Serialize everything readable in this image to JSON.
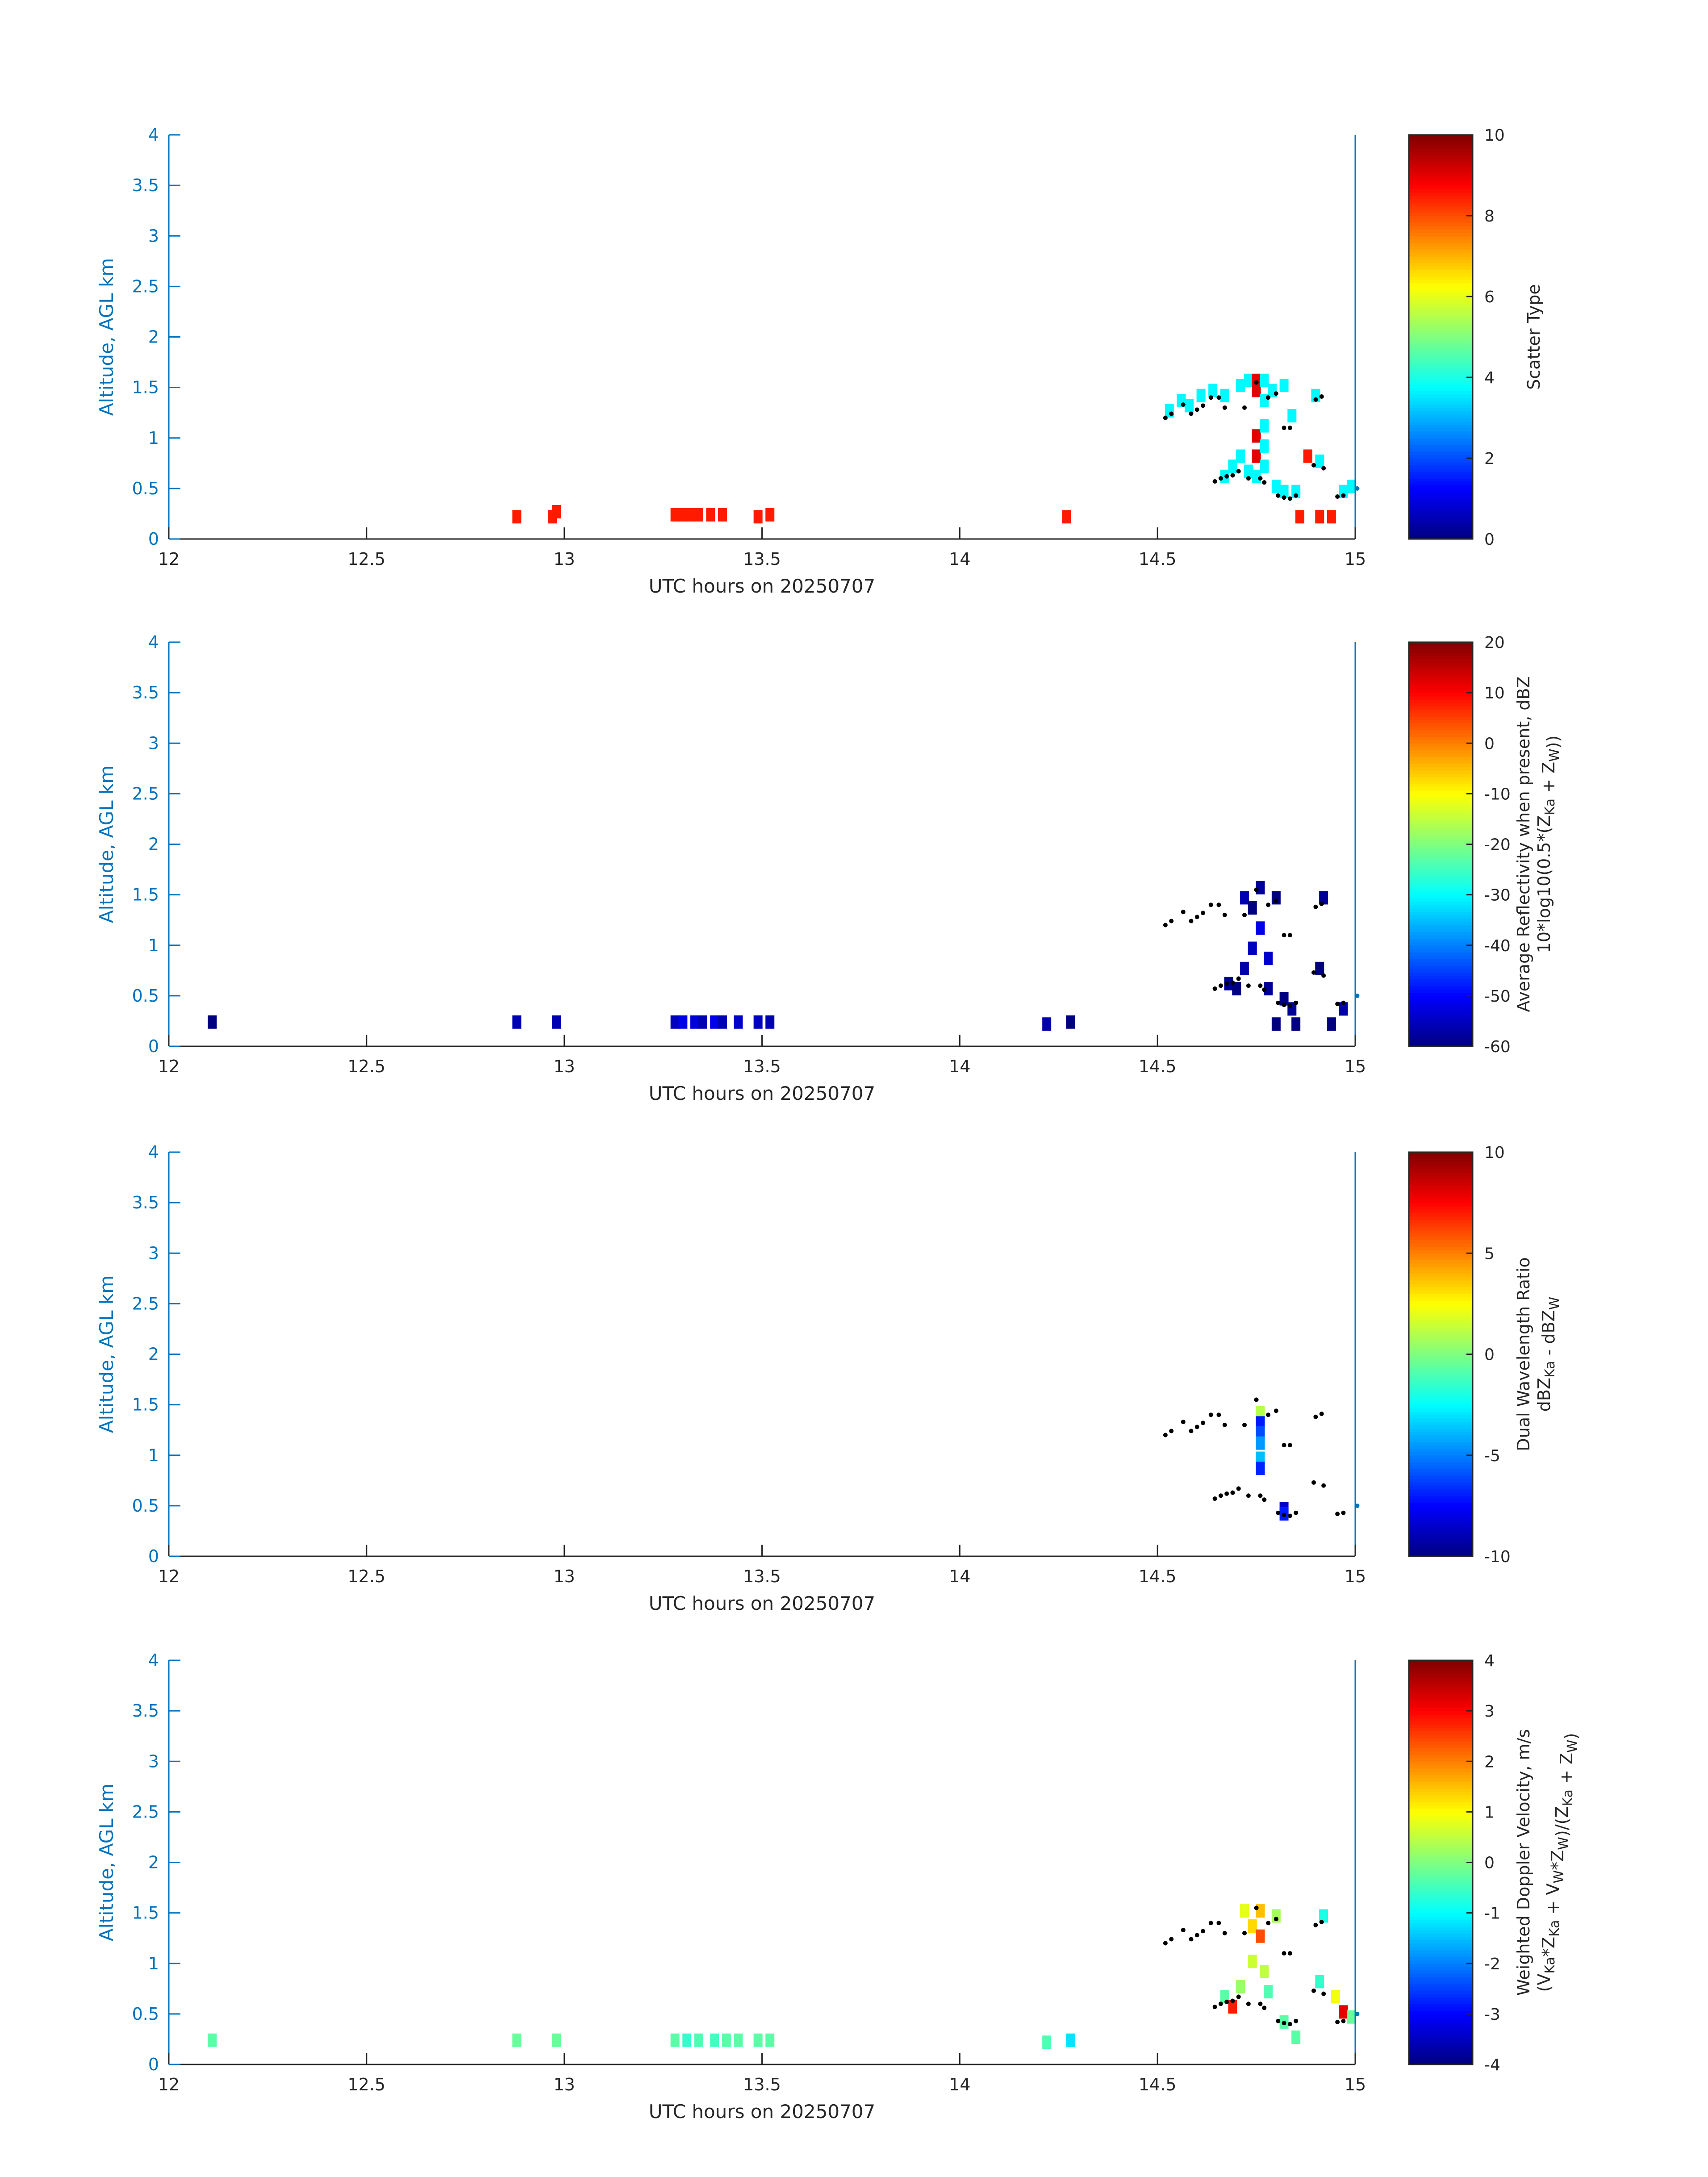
{
  "figure": {
    "xlabel": "UTC hours on 20250707",
    "ylabel": "Altitude, AGL km",
    "xlim": [
      12,
      15
    ],
    "ylim": [
      0,
      4
    ],
    "xticks": [
      12,
      12.5,
      13,
      13.5,
      14,
      14.5,
      15
    ],
    "yticks": [
      0,
      0.5,
      1,
      1.5,
      2,
      2.5,
      3,
      3.5,
      4
    ],
    "colormap": "jet",
    "axis_color": "#0072BD",
    "text_color": "#262626"
  },
  "chart_data": [
    {
      "type": "heatmap",
      "colorbar_label": [
        "Scatter Type"
      ],
      "colorbar_ticks": [
        0,
        2,
        4,
        6,
        8,
        10
      ],
      "clim": [
        0,
        10
      ],
      "cells": [
        [
          12.88,
          0.22,
          8.5
        ],
        [
          12.97,
          0.22,
          8.5
        ],
        [
          12.98,
          0.27,
          8.5
        ],
        [
          13.28,
          0.24,
          8.5
        ],
        [
          13.3,
          0.24,
          8.5
        ],
        [
          13.32,
          0.24,
          8.5
        ],
        [
          13.34,
          0.24,
          8.5
        ],
        [
          13.37,
          0.24,
          8.5
        ],
        [
          13.4,
          0.24,
          8.5
        ],
        [
          13.49,
          0.22,
          8.5
        ],
        [
          13.52,
          0.24,
          8.5
        ],
        [
          14.27,
          0.22,
          8.5
        ],
        [
          14.53,
          1.27,
          3.7
        ],
        [
          14.56,
          1.37,
          3.7
        ],
        [
          14.58,
          1.32,
          3.7
        ],
        [
          14.61,
          1.42,
          3.7
        ],
        [
          14.64,
          1.47,
          3.7
        ],
        [
          14.67,
          1.42,
          3.7
        ],
        [
          14.71,
          1.52,
          3.7
        ],
        [
          14.73,
          1.57,
          3.7
        ],
        [
          14.75,
          1.57,
          9.0
        ],
        [
          14.75,
          1.47,
          9.0
        ],
        [
          14.75,
          1.02,
          9.0
        ],
        [
          14.75,
          0.82,
          9.0
        ],
        [
          14.77,
          1.57,
          3.7
        ],
        [
          14.77,
          1.37,
          3.7
        ],
        [
          14.77,
          1.12,
          3.7
        ],
        [
          14.77,
          0.92,
          3.7
        ],
        [
          14.77,
          0.72,
          3.7
        ],
        [
          14.79,
          1.47,
          3.7
        ],
        [
          14.82,
          1.52,
          3.7
        ],
        [
          14.84,
          1.22,
          3.7
        ],
        [
          14.9,
          1.42,
          3.7
        ],
        [
          14.67,
          0.62,
          3.7
        ],
        [
          14.69,
          0.72,
          3.7
        ],
        [
          14.71,
          0.82,
          3.7
        ],
        [
          14.73,
          0.67,
          3.7
        ],
        [
          14.75,
          0.62,
          3.7
        ],
        [
          14.8,
          0.52,
          3.7
        ],
        [
          14.82,
          0.47,
          3.7
        ],
        [
          14.85,
          0.47,
          3.7
        ],
        [
          14.88,
          0.82,
          8.5
        ],
        [
          14.91,
          0.77,
          3.7
        ],
        [
          14.97,
          0.47,
          3.7
        ],
        [
          14.99,
          0.52,
          3.7
        ],
        [
          14.86,
          0.22,
          8.5
        ],
        [
          14.91,
          0.22,
          8.5
        ],
        [
          14.94,
          0.22,
          8.5
        ]
      ]
    },
    {
      "type": "heatmap",
      "colorbar_label": [
        "Average Reflectivity when present, dBZ",
        "10*log10(0.5*(Z_Ka + Z_W))"
      ],
      "colorbar_ticks": [
        -60,
        -50,
        -40,
        -30,
        -20,
        -10,
        0,
        10,
        20
      ],
      "clim": [
        -60,
        20
      ],
      "cells": [
        [
          12.11,
          0.24,
          -60
        ],
        [
          12.88,
          0.24,
          -56
        ],
        [
          12.98,
          0.24,
          -56
        ],
        [
          13.28,
          0.24,
          -55
        ],
        [
          13.3,
          0.24,
          -52
        ],
        [
          13.33,
          0.24,
          -53
        ],
        [
          13.35,
          0.24,
          -56
        ],
        [
          13.38,
          0.24,
          -52
        ],
        [
          13.4,
          0.24,
          -56
        ],
        [
          13.44,
          0.24,
          -54
        ],
        [
          13.49,
          0.24,
          -55
        ],
        [
          13.52,
          0.24,
          -56
        ],
        [
          14.22,
          0.22,
          -57
        ],
        [
          14.28,
          0.24,
          -60
        ],
        [
          14.68,
          0.62,
          -58
        ],
        [
          14.7,
          0.57,
          -60
        ],
        [
          14.72,
          0.77,
          -57
        ],
        [
          14.72,
          1.47,
          -56
        ],
        [
          14.74,
          1.37,
          -60
        ],
        [
          14.74,
          0.97,
          -55
        ],
        [
          14.76,
          1.57,
          -58
        ],
        [
          14.76,
          1.17,
          -52
        ],
        [
          14.78,
          0.87,
          -54
        ],
        [
          14.78,
          0.57,
          -58
        ],
        [
          14.8,
          1.47,
          -60
        ],
        [
          14.82,
          0.47,
          -60
        ],
        [
          14.84,
          0.37,
          -58
        ],
        [
          14.8,
          0.22,
          -60
        ],
        [
          14.85,
          0.22,
          -60
        ],
        [
          14.91,
          0.77,
          -60
        ],
        [
          14.92,
          1.47,
          -58
        ],
        [
          14.94,
          0.22,
          -60
        ],
        [
          14.97,
          0.37,
          -57
        ]
      ]
    },
    {
      "type": "heatmap",
      "colorbar_label": [
        "Dual Wavelength Ratio",
        "dBZ_Ka - dBZ_W"
      ],
      "colorbar_ticks": [
        -10,
        -5,
        0,
        5,
        10
      ],
      "clim": [
        -10,
        10
      ],
      "cells": [
        [
          14.76,
          1.42,
          1.0
        ],
        [
          14.76,
          1.32,
          -7.0
        ],
        [
          14.76,
          1.22,
          -6.0
        ],
        [
          14.76,
          1.12,
          -4.5
        ],
        [
          14.76,
          0.97,
          -3.8
        ],
        [
          14.76,
          0.87,
          -6.8
        ],
        [
          14.82,
          0.47,
          -8.5
        ],
        [
          14.82,
          0.42,
          -7.0
        ]
      ]
    },
    {
      "type": "heatmap",
      "colorbar_label": [
        "Weighted Doppler Velocity, m/s",
        "(V_Ka*Z_Ka + V_W*Z_W)/(Z_Ka + Z_W)"
      ],
      "colorbar_ticks": [
        -4,
        -3,
        -2,
        -1,
        0,
        1,
        2,
        3,
        4
      ],
      "clim": [
        -4,
        4
      ],
      "cells": [
        [
          12.11,
          0.24,
          -0.3
        ],
        [
          12.88,
          0.24,
          -0.2
        ],
        [
          12.98,
          0.24,
          -0.2
        ],
        [
          13.28,
          0.24,
          -0.3
        ],
        [
          13.31,
          0.24,
          -0.6
        ],
        [
          13.34,
          0.24,
          -0.4
        ],
        [
          13.38,
          0.24,
          -0.5
        ],
        [
          13.41,
          0.24,
          -0.3
        ],
        [
          13.44,
          0.24,
          -0.3
        ],
        [
          13.49,
          0.24,
          -0.3
        ],
        [
          13.52,
          0.24,
          -0.3
        ],
        [
          14.22,
          0.22,
          -0.4
        ],
        [
          14.28,
          0.24,
          -1.2
        ],
        [
          14.67,
          0.67,
          -0.3
        ],
        [
          14.69,
          0.57,
          2.8
        ],
        [
          14.71,
          0.77,
          0.2
        ],
        [
          14.72,
          1.52,
          0.8
        ],
        [
          14.74,
          1.37,
          1.3
        ],
        [
          14.74,
          1.02,
          0.6
        ],
        [
          14.76,
          1.52,
          1.5
        ],
        [
          14.76,
          1.27,
          2.4
        ],
        [
          14.77,
          0.92,
          0.5
        ],
        [
          14.78,
          0.72,
          -0.4
        ],
        [
          14.8,
          1.47,
          0.3
        ],
        [
          14.82,
          0.42,
          -0.3
        ],
        [
          14.85,
          0.27,
          -0.3
        ],
        [
          14.91,
          0.82,
          -0.6
        ],
        [
          14.92,
          1.47,
          -0.8
        ],
        [
          14.95,
          0.67,
          0.9
        ],
        [
          14.97,
          0.52,
          3.2
        ],
        [
          14.99,
          0.47,
          -0.2
        ]
      ]
    }
  ],
  "bright_band_points": [
    [
      14.52,
      1.2
    ],
    [
      14.535,
      1.24
    ],
    [
      14.565,
      1.33
    ],
    [
      14.585,
      1.24
    ],
    [
      14.6,
      1.28
    ],
    [
      14.615,
      1.32
    ],
    [
      14.635,
      1.4
    ],
    [
      14.655,
      1.4
    ],
    [
      14.67,
      1.3
    ],
    [
      14.72,
      1.3
    ],
    [
      14.75,
      1.55
    ],
    [
      14.78,
      1.4
    ],
    [
      14.8,
      1.44
    ],
    [
      14.82,
      1.1
    ],
    [
      14.835,
      1.1
    ],
    [
      14.9,
      1.38
    ],
    [
      14.915,
      1.41
    ],
    [
      14.645,
      0.57
    ],
    [
      14.66,
      0.6
    ],
    [
      14.675,
      0.62
    ],
    [
      14.69,
      0.63
    ],
    [
      14.705,
      0.67
    ],
    [
      14.73,
      0.6
    ],
    [
      14.76,
      0.6
    ],
    [
      14.77,
      0.56
    ],
    [
      14.805,
      0.43
    ],
    [
      14.82,
      0.41
    ],
    [
      14.835,
      0.4
    ],
    [
      14.85,
      0.43
    ],
    [
      14.895,
      0.73
    ],
    [
      14.92,
      0.7
    ],
    [
      14.955,
      0.42
    ],
    [
      14.97,
      0.43
    ],
    [
      15.005,
      0.5
    ]
  ]
}
